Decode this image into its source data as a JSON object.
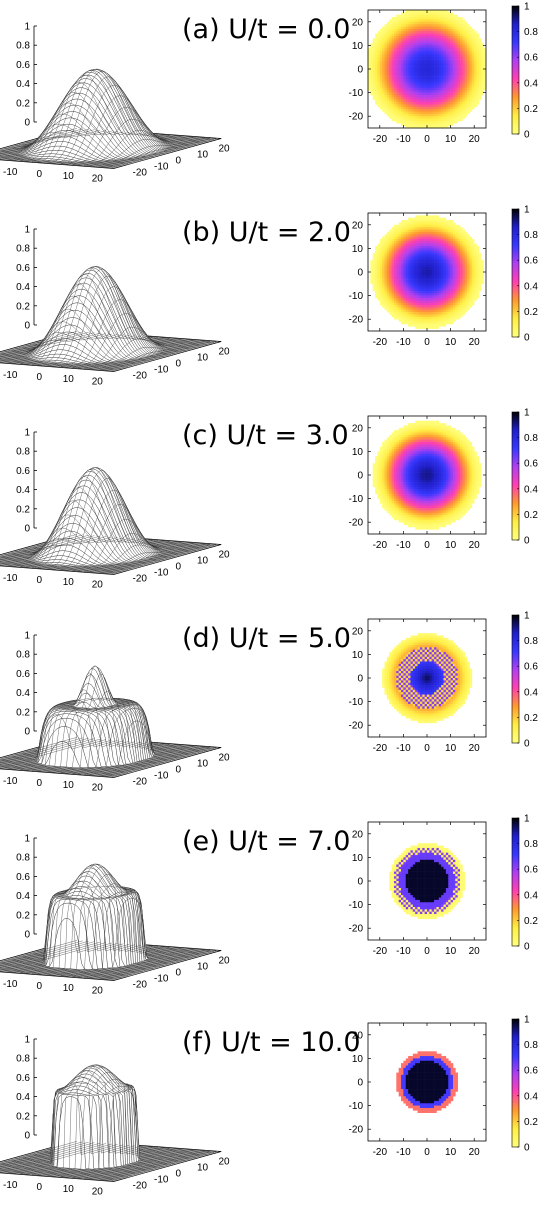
{
  "figure": {
    "panels": [
      {
        "title": "(a) U/t = 0.0"
      },
      {
        "title": "(b) U/t = 2.0"
      },
      {
        "title": "(c) U/t = 3.0"
      },
      {
        "title": "(d) U/t = 5.0"
      },
      {
        "title": "(e) U/t = 7.0"
      },
      {
        "title": "(f) U/t = 10.0"
      }
    ]
  },
  "chart_data": [
    {
      "type": "surface",
      "title": "(a) U/t = 0.0",
      "x_ticks": [
        "-20",
        "-10",
        "0",
        "10",
        "20"
      ],
      "y_ticks": [
        "20",
        "10",
        "0",
        "-10",
        "-20"
      ],
      "z_ticks": [
        "0",
        "0.2",
        "0.4",
        "0.6",
        "0.8",
        "1"
      ],
      "zlim": [
        0,
        1
      ],
      "profile": "smooth",
      "peak": 0.82,
      "core_radius": 0,
      "plateau": 0,
      "edge_radius": 22
    },
    {
      "type": "heatmap",
      "title": "(a) U/t = 0.0",
      "x_ticks": [
        "-20",
        "-10",
        "0",
        "10",
        "20"
      ],
      "y_ticks": [
        "20",
        "10",
        "0",
        "-10",
        "-20"
      ],
      "colorbar_ticks": [
        "0",
        "0.2",
        "0.4",
        "0.6",
        "0.8",
        "1"
      ],
      "xlim": [
        -25,
        25
      ],
      "ylim": [
        -25,
        25
      ],
      "clim": [
        0,
        1
      ],
      "colormap": [
        "#ffff80",
        "#ffee44",
        "#ff9a30",
        "#ff40b0",
        "#b040f0",
        "#3838ff",
        "#2020cc",
        "#000000"
      ],
      "profile": "smooth",
      "peak": 0.82,
      "core_radius": 0,
      "plateau": 0,
      "edge_radius": 22
    },
    {
      "type": "surface",
      "title": "(b) U/t = 2.0",
      "x_ticks": [
        "-20",
        "-10",
        "0",
        "10",
        "20"
      ],
      "y_ticks": [
        "20",
        "10",
        "0",
        "-10",
        "-20"
      ],
      "z_ticks": [
        "0",
        "0.2",
        "0.4",
        "0.6",
        "0.8",
        "1"
      ],
      "zlim": [
        0,
        1
      ],
      "profile": "smooth",
      "peak": 0.88,
      "core_radius": 0,
      "plateau": 0,
      "edge_radius": 20
    },
    {
      "type": "heatmap",
      "title": "(b) U/t = 2.0",
      "x_ticks": [
        "-20",
        "-10",
        "0",
        "10",
        "20"
      ],
      "y_ticks": [
        "20",
        "10",
        "0",
        "-10",
        "-20"
      ],
      "colorbar_ticks": [
        "0",
        "0.2",
        "0.4",
        "0.6",
        "0.8",
        "1"
      ],
      "xlim": [
        -25,
        25
      ],
      "ylim": [
        -25,
        25
      ],
      "clim": [
        0,
        1
      ],
      "colormap": [
        "#ffff80",
        "#ffee44",
        "#ff9a30",
        "#ff40b0",
        "#b040f0",
        "#3838ff",
        "#2020cc",
        "#000000"
      ],
      "profile": "smooth",
      "peak": 0.88,
      "core_radius": 0,
      "plateau": 0,
      "edge_radius": 20
    },
    {
      "type": "surface",
      "title": "(c) U/t = 3.0",
      "x_ticks": [
        "-20",
        "-10",
        "0",
        "10",
        "20"
      ],
      "y_ticks": [
        "20",
        "10",
        "0",
        "-10",
        "-20"
      ],
      "z_ticks": [
        "0",
        "0.2",
        "0.4",
        "0.6",
        "0.8",
        "1"
      ],
      "zlim": [
        0,
        1
      ],
      "profile": "smooth",
      "peak": 0.9,
      "core_radius": 0,
      "plateau": 0,
      "edge_radius": 19
    },
    {
      "type": "heatmap",
      "title": "(c) U/t = 3.0",
      "x_ticks": [
        "-20",
        "-10",
        "0",
        "10",
        "20"
      ],
      "y_ticks": [
        "20",
        "10",
        "0",
        "-10",
        "-20"
      ],
      "colorbar_ticks": [
        "0",
        "0.2",
        "0.4",
        "0.6",
        "0.8",
        "1"
      ],
      "xlim": [
        -25,
        25
      ],
      "ylim": [
        -25,
        25
      ],
      "clim": [
        0,
        1
      ],
      "colormap": [
        "#ffff80",
        "#ffee44",
        "#ff9a30",
        "#ff40b0",
        "#b040f0",
        "#3838ff",
        "#2020cc",
        "#000000"
      ],
      "profile": "smooth",
      "peak": 0.9,
      "core_radius": 0,
      "plateau": 0,
      "edge_radius": 19
    },
    {
      "type": "surface",
      "title": "(d) U/t = 5.0",
      "x_ticks": [
        "-20",
        "-10",
        "0",
        "10",
        "20"
      ],
      "y_ticks": [
        "20",
        "10",
        "0",
        "-10",
        "-20"
      ],
      "z_ticks": [
        "0",
        "0.2",
        "0.4",
        "0.6",
        "0.8",
        "1"
      ],
      "zlim": [
        0,
        1
      ],
      "profile": "plateau",
      "peak": 0.95,
      "core_radius": 6,
      "plateau": 0.55,
      "edge_radius": 16
    },
    {
      "type": "heatmap",
      "title": "(d) U/t = 5.0",
      "x_ticks": [
        "-20",
        "-10",
        "0",
        "10",
        "20"
      ],
      "y_ticks": [
        "20",
        "10",
        "0",
        "-10",
        "-20"
      ],
      "colorbar_ticks": [
        "0",
        "0.2",
        "0.4",
        "0.6",
        "0.8",
        "1"
      ],
      "xlim": [
        -25,
        25
      ],
      "ylim": [
        -25,
        25
      ],
      "clim": [
        0,
        1
      ],
      "colormap": [
        "#ffff80",
        "#ffee44",
        "#ff9a30",
        "#ff40b0",
        "#b040f0",
        "#3838ff",
        "#2020cc",
        "#000000"
      ],
      "profile": "checker",
      "peak": 0.95,
      "core_radius": 6,
      "plateau": 0.55,
      "edge_radius": 16
    },
    {
      "type": "surface",
      "title": "(e) U/t = 7.0",
      "x_ticks": [
        "-20",
        "-10",
        "0",
        "10",
        "20"
      ],
      "y_ticks": [
        "20",
        "10",
        "0",
        "-10",
        "-20"
      ],
      "z_ticks": [
        "0",
        "0.2",
        "0.4",
        "0.6",
        "0.8",
        "1"
      ],
      "zlim": [
        0,
        1
      ],
      "profile": "plateau",
      "peak": 1.0,
      "core_radius": 9,
      "plateau": 0.7,
      "edge_radius": 14
    },
    {
      "type": "heatmap",
      "title": "(e) U/t = 7.0",
      "x_ticks": [
        "-20",
        "-10",
        "0",
        "10",
        "20"
      ],
      "y_ticks": [
        "20",
        "10",
        "0",
        "-10",
        "-20"
      ],
      "colorbar_ticks": [
        "0",
        "0.2",
        "0.4",
        "0.6",
        "0.8",
        "1"
      ],
      "xlim": [
        -25,
        25
      ],
      "ylim": [
        -25,
        25
      ],
      "clim": [
        0,
        1
      ],
      "colormap": [
        "#ffff80",
        "#ffee44",
        "#ff9a30",
        "#ff40b0",
        "#b040f0",
        "#3838ff",
        "#2020cc",
        "#000000"
      ],
      "profile": "ring",
      "peak": 1.0,
      "core_radius": 9,
      "plateau": 0.7,
      "edge_radius": 14
    },
    {
      "type": "surface",
      "title": "(f) U/t = 10.0",
      "x_ticks": [
        "-20",
        "-10",
        "0",
        "10",
        "20"
      ],
      "y_ticks": [
        "20",
        "10",
        "0",
        "-10",
        "-20"
      ],
      "z_ticks": [
        "0",
        "0.2",
        "0.4",
        "0.6",
        "0.8",
        "1"
      ],
      "zlim": [
        0,
        1
      ],
      "profile": "plateau",
      "peak": 1.0,
      "core_radius": 10,
      "plateau": 0.75,
      "edge_radius": 12
    },
    {
      "type": "heatmap",
      "title": "(f) U/t = 10.0",
      "x_ticks": [
        "-20",
        "-10",
        "0",
        "10",
        "20"
      ],
      "y_ticks": [
        "20",
        "10",
        "0",
        "-10",
        "-20"
      ],
      "colorbar_ticks": [
        "0",
        "0.2",
        "0.4",
        "0.6",
        "0.8",
        "1"
      ],
      "xlim": [
        -25,
        25
      ],
      "ylim": [
        -25,
        25
      ],
      "clim": [
        0,
        1
      ],
      "colormap": [
        "#ffff80",
        "#ffee44",
        "#ff9a30",
        "#ff40b0",
        "#b040f0",
        "#3838ff",
        "#2020cc",
        "#000000"
      ],
      "profile": "sharp",
      "peak": 1.0,
      "core_radius": 10,
      "plateau": 0.75,
      "edge_radius": 12
    }
  ]
}
